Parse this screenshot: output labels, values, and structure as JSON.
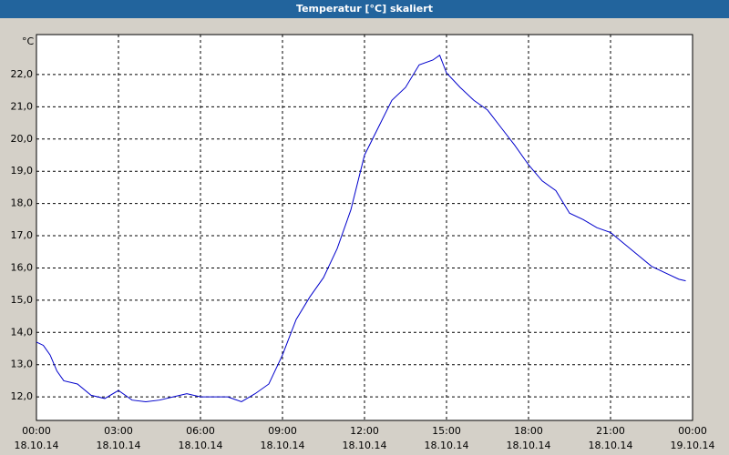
{
  "window_title": "Temperatur [°C] skaliert",
  "chart_data": {
    "type": "line",
    "y_unit": "°C",
    "x": [
      0,
      0.25,
      0.5,
      0.75,
      1,
      1.5,
      2,
      2.5,
      3,
      3.5,
      4,
      4.5,
      5,
      5.5,
      6,
      6.5,
      7,
      7.5,
      8,
      8.5,
      9,
      9.5,
      10,
      10.5,
      11,
      11.5,
      12,
      12.5,
      13,
      13.5,
      14,
      14.5,
      14.75,
      15,
      15.5,
      16,
      16.5,
      17,
      17.5,
      18,
      18.5,
      19,
      19.5,
      20,
      20.5,
      21,
      21.5,
      22,
      22.5,
      23,
      23.5,
      23.75
    ],
    "series": [
      {
        "name": "Temperatur",
        "color": "#0000cc",
        "values": [
          13.7,
          13.6,
          13.3,
          12.8,
          12.5,
          12.4,
          12.05,
          11.95,
          12.2,
          11.9,
          11.85,
          11.9,
          12.0,
          12.1,
          12.0,
          12.0,
          12.0,
          11.85,
          12.1,
          12.4,
          13.3,
          14.4,
          15.1,
          15.7,
          16.6,
          17.8,
          19.5,
          20.35,
          21.2,
          21.6,
          22.3,
          22.45,
          22.6,
          22.05,
          21.6,
          21.2,
          20.9,
          20.35,
          19.8,
          19.2,
          18.7,
          18.4,
          17.7,
          17.5,
          17.25,
          17.1,
          16.75,
          16.4,
          16.05,
          15.85,
          15.65,
          15.6
        ]
      }
    ],
    "xlim": [
      0,
      24
    ],
    "xticks": [
      {
        "value": 0,
        "label": "00:00",
        "date": "18.10.14"
      },
      {
        "value": 3,
        "label": "03:00",
        "date": "18.10.14"
      },
      {
        "value": 6,
        "label": "06:00",
        "date": "18.10.14"
      },
      {
        "value": 9,
        "label": "09:00",
        "date": "18.10.14"
      },
      {
        "value": 12,
        "label": "12:00",
        "date": "18.10.14"
      },
      {
        "value": 15,
        "label": "15:00",
        "date": "18.10.14"
      },
      {
        "value": 18,
        "label": "18:00",
        "date": "18.10.14"
      },
      {
        "value": 21,
        "label": "21:00",
        "date": "18.10.14"
      },
      {
        "value": 24,
        "label": "00:00",
        "date": "19.10.14"
      }
    ],
    "ylim": [
      11.27,
      23.24
    ],
    "yticks": [
      {
        "value": 12,
        "label": "12,0"
      },
      {
        "value": 13,
        "label": "13,0"
      },
      {
        "value": 14,
        "label": "14,0"
      },
      {
        "value": 15,
        "label": "15,0"
      },
      {
        "value": 16,
        "label": "16,0"
      },
      {
        "value": 17,
        "label": "17,0"
      },
      {
        "value": 18,
        "label": "18,0"
      },
      {
        "value": 19,
        "label": "19,0"
      },
      {
        "value": 20,
        "label": "20,0"
      },
      {
        "value": 21,
        "label": "21,0"
      },
      {
        "value": 22,
        "label": "22,0"
      }
    ],
    "grid": true
  }
}
